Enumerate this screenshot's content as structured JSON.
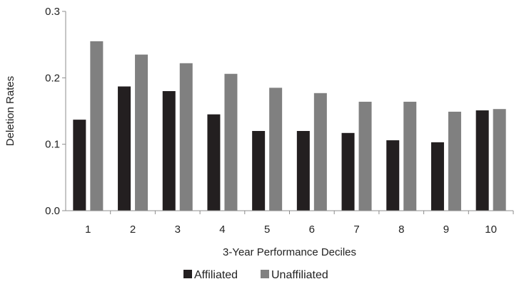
{
  "chart_data": {
    "type": "bar",
    "title": "",
    "xlabel": "3-Year Performance Deciles",
    "ylabel": "Deletion Rates",
    "categories": [
      "1",
      "2",
      "3",
      "4",
      "5",
      "6",
      "7",
      "8",
      "9",
      "10"
    ],
    "ylim": [
      0,
      0.3
    ],
    "yticks": [
      "0.0",
      "0.1",
      "0.2",
      "0.3"
    ],
    "grid": false,
    "legend_position": "bottom",
    "series": [
      {
        "name": "Affiliated",
        "color": "#231f20",
        "values": [
          0.137,
          0.187,
          0.18,
          0.145,
          0.12,
          0.12,
          0.117,
          0.106,
          0.103,
          0.151
        ]
      },
      {
        "name": "Unaffiliated",
        "color": "#808080",
        "values": [
          0.255,
          0.235,
          0.222,
          0.206,
          0.185,
          0.177,
          0.164,
          0.164,
          0.149,
          0.153
        ]
      }
    ]
  }
}
